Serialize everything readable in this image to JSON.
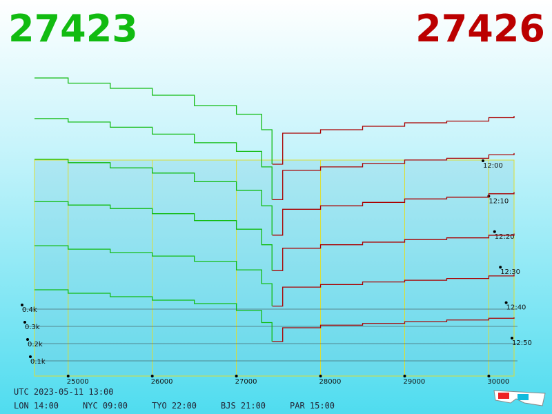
{
  "header": {
    "bid": "27423",
    "ask": "27426"
  },
  "chart_data": {
    "type": "depth3d",
    "categories": [
      "12:00",
      "12:10",
      "12:20",
      "12:30",
      "12:40",
      "12:50"
    ],
    "xlim": [
      24600,
      30300
    ],
    "xticks": [
      25000,
      26000,
      27000,
      28000,
      29000,
      30000
    ],
    "zlim": [
      0,
      600
    ],
    "zticks": [
      {
        "value": 100,
        "label": "0.1k"
      },
      {
        "value": 200,
        "label": "0.2k"
      },
      {
        "value": 300,
        "label": "0.3k"
      },
      {
        "value": 400,
        "label": "0.4k"
      }
    ],
    "bid": {
      "color": "#11bb11",
      "x": [
        24600,
        25000,
        25500,
        26000,
        26500,
        27000,
        27300,
        27423
      ],
      "values": [
        [
          500,
          470,
          440,
          400,
          340,
          290,
          200,
          0
        ],
        [
          470,
          450,
          420,
          380,
          330,
          280,
          190,
          0
        ],
        [
          440,
          420,
          390,
          360,
          310,
          260,
          170,
          0
        ],
        [
          400,
          380,
          360,
          330,
          290,
          240,
          150,
          0
        ],
        [
          350,
          330,
          310,
          290,
          260,
          210,
          130,
          0
        ],
        [
          300,
          280,
          260,
          240,
          220,
          180,
          110,
          0
        ]
      ]
    },
    "ask": {
      "color": "#aa0000",
      "x": [
        27426,
        27550,
        28000,
        28500,
        29000,
        29500,
        30000,
        30300
      ],
      "values": [
        [
          0,
          180,
          200,
          220,
          240,
          250,
          270,
          280
        ],
        [
          0,
          170,
          190,
          210,
          230,
          240,
          260,
          270
        ],
        [
          0,
          150,
          170,
          190,
          210,
          220,
          240,
          250
        ],
        [
          0,
          130,
          150,
          165,
          180,
          190,
          205,
          215
        ],
        [
          0,
          110,
          125,
          140,
          150,
          160,
          175,
          185
        ],
        [
          0,
          80,
          95,
          105,
          115,
          125,
          135,
          140
        ]
      ]
    }
  },
  "footer": {
    "utc": "UTC 2023-05-11 13:00",
    "cities": [
      "LON 14:00",
      "NYC 09:00",
      "TYO 22:00",
      "BJS 21:00",
      "PAR 15:00"
    ]
  }
}
